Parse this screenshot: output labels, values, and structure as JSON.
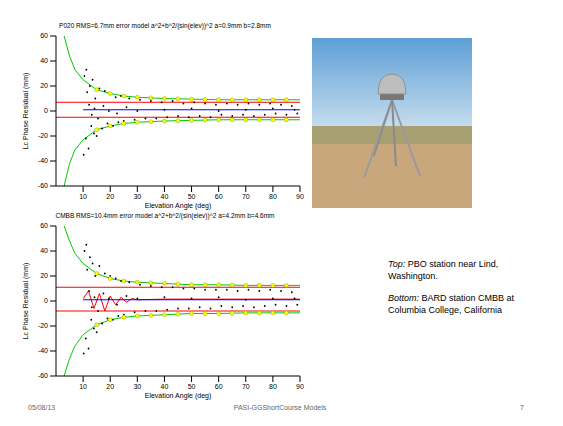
{
  "chart_data": [
    {
      "type": "scatter",
      "title": "P020 RMS=6.7mm error model a^2+b^2/(sin(elev))^2 a=0.9mm b=2.8mm",
      "x_label": "Elevation Angle (deg)",
      "y_label": "Lc Phase Residual (mm)",
      "xlim": [
        0,
        90
      ],
      "xticks": [
        10,
        20,
        30,
        40,
        50,
        60,
        70,
        80,
        90
      ],
      "ylim": [
        -60,
        60
      ],
      "yticks": [
        -60,
        -40,
        -20,
        0,
        20,
        40,
        60
      ],
      "grid": false,
      "series": [
        {
          "type": "scatter",
          "marker": "dot",
          "color": "#000000",
          "x": [
            10.5,
            11,
            11.5,
            12,
            12.5,
            13,
            13.5,
            14,
            14.5,
            15,
            16,
            17,
            18,
            19,
            20,
            21,
            22,
            23,
            24,
            25,
            27,
            29,
            31,
            33,
            35,
            37,
            39,
            41,
            43,
            45,
            47,
            49,
            51,
            53,
            55,
            57,
            59,
            61,
            63,
            65,
            67,
            69,
            71,
            73,
            75,
            77,
            79,
            81,
            83,
            85,
            87,
            89,
            10.2,
            11.2,
            12.2,
            13.2,
            14.2,
            15.5,
            17.5,
            19.5,
            22.5,
            26,
            30,
            40,
            50,
            60,
            70,
            80,
            88
          ],
          "values": [
            28,
            -22,
            15,
            -30,
            20,
            -12,
            25,
            -18,
            10,
            -20,
            18,
            -14,
            16,
            -10,
            14,
            -12,
            11,
            -9,
            12,
            -8,
            10,
            -7,
            9,
            -6,
            8,
            -6,
            7,
            -5,
            8,
            -4,
            6,
            -5,
            7,
            -4,
            6,
            -5,
            5,
            -3,
            6,
            -4,
            5,
            -3,
            6,
            -4,
            5,
            -3,
            6,
            -2,
            5,
            -3,
            4,
            -2,
            -35,
            33,
            5,
            -3,
            2,
            -6,
            4,
            0,
            -2,
            3,
            0,
            1,
            2,
            0,
            1,
            2,
            1
          ]
        },
        {
          "type": "line",
          "line_style": "solid",
          "color": "#00cc00",
          "x": [
            3,
            5,
            7,
            10,
            15,
            20,
            25,
            30,
            40,
            50,
            60,
            70,
            80,
            90
          ],
          "values": [
            60,
            44,
            33,
            25,
            17,
            14,
            12,
            11,
            10,
            9.5,
            9,
            9,
            9,
            9
          ]
        },
        {
          "type": "line",
          "line_style": "solid",
          "color": "#00cc00",
          "x": [
            3,
            5,
            7,
            10,
            15,
            20,
            25,
            30,
            40,
            50,
            60,
            70,
            80,
            90
          ],
          "values": [
            -60,
            -42,
            -31,
            -23,
            -15,
            -12,
            -10,
            -9,
            -8,
            -7.5,
            -7,
            -7,
            -7,
            -7
          ]
        },
        {
          "type": "line",
          "line_style": "solid",
          "color": "#ff0000",
          "x": [
            0,
            90
          ],
          "values": [
            7,
            7
          ]
        },
        {
          "type": "line",
          "line_style": "solid",
          "color": "#ff0000",
          "x": [
            0,
            90
          ],
          "values": [
            -5,
            -5
          ]
        },
        {
          "type": "line",
          "line_style": "solid",
          "color": "#0000ff",
          "x": [
            10,
            90
          ],
          "values": [
            1,
            1
          ]
        },
        {
          "type": "scatter",
          "marker": "circle",
          "color": "#ffff00",
          "x": [
            15,
            20,
            25,
            30,
            35,
            40,
            45,
            50,
            55,
            60,
            65,
            70,
            75,
            80,
            85
          ],
          "values": [
            17,
            14,
            12,
            11,
            10.5,
            10,
            9.8,
            9.5,
            9.2,
            9,
            9,
            9,
            9,
            9,
            9
          ]
        },
        {
          "type": "scatter",
          "marker": "circle",
          "color": "#ffff00",
          "x": [
            15,
            20,
            25,
            30,
            35,
            40,
            45,
            50,
            55,
            60,
            65,
            70,
            75,
            80,
            85
          ],
          "values": [
            -15,
            -12,
            -10,
            -9,
            -8.5,
            -8,
            -7.8,
            -7.5,
            -7.2,
            -7,
            -7,
            -7,
            -7,
            -7,
            -7
          ]
        }
      ]
    },
    {
      "type": "scatter",
      "title": "CMBB RMS=10.4mm error model a^2+b^2/(sin(elev))^2 a=4.2mm b=4.6mm",
      "x_label": "Elevation Angle (deg)",
      "y_label": "Lc Phase Residual (mm)",
      "xlim": [
        0,
        90
      ],
      "xticks": [
        10,
        20,
        30,
        40,
        50,
        60,
        70,
        80,
        90
      ],
      "ylim": [
        -60,
        60
      ],
      "yticks": [
        -60,
        -40,
        -20,
        0,
        20,
        40,
        60
      ],
      "grid": false,
      "series": [
        {
          "type": "scatter",
          "marker": "dot",
          "color": "#000000",
          "x": [
            10.5,
            11,
            11.5,
            12,
            12.5,
            13,
            13.5,
            14,
            14.5,
            15,
            16,
            17,
            18,
            19,
            20,
            21,
            22,
            23,
            24,
            25,
            27,
            29,
            31,
            33,
            35,
            37,
            39,
            41,
            43,
            45,
            47,
            49,
            51,
            53,
            55,
            57,
            59,
            61,
            63,
            65,
            67,
            69,
            71,
            73,
            75,
            77,
            79,
            81,
            83,
            85,
            87,
            89,
            10.2,
            11.2,
            12.2,
            13.2,
            14.2,
            15.5,
            17.5,
            19.5,
            22.5,
            26,
            30,
            40,
            50,
            60,
            70,
            80,
            88
          ],
          "values": [
            40,
            -30,
            25,
            -38,
            35,
            -15,
            30,
            -22,
            20,
            -25,
            28,
            -18,
            22,
            -14,
            20,
            -15,
            18,
            -12,
            16,
            -11,
            15,
            -9,
            13,
            -8,
            12,
            -8,
            11,
            -7,
            11,
            -6,
            10,
            -6,
            10,
            -5,
            9,
            -6,
            9,
            -4,
            9,
            -5,
            8,
            -4,
            9,
            -5,
            8,
            -4,
            9,
            -3,
            8,
            -4,
            7,
            -3,
            -42,
            45,
            8,
            -5,
            3,
            -8,
            6,
            2,
            -3,
            4,
            2,
            3,
            2,
            3,
            1,
            2,
            2
          ]
        },
        {
          "type": "line",
          "line_style": "solid",
          "color": "#00cc00",
          "x": [
            3,
            5,
            7,
            10,
            15,
            20,
            25,
            30,
            40,
            50,
            60,
            70,
            80,
            90
          ],
          "values": [
            60,
            48,
            38,
            30,
            22,
            18,
            16,
            15,
            14,
            13,
            13,
            12.5,
            12.5,
            12.5
          ]
        },
        {
          "type": "line",
          "line_style": "solid",
          "color": "#00cc00",
          "x": [
            3,
            5,
            7,
            10,
            15,
            20,
            25,
            30,
            40,
            50,
            60,
            70,
            80,
            90
          ],
          "values": [
            -60,
            -46,
            -36,
            -27,
            -19,
            -15,
            -13,
            -12,
            -11,
            -10,
            -10,
            -9.5,
            -9.5,
            -9.5
          ]
        },
        {
          "type": "line",
          "line_style": "solid",
          "color": "#ff0000",
          "x": [
            0,
            90
          ],
          "values": [
            11,
            11
          ]
        },
        {
          "type": "line",
          "line_style": "solid",
          "color": "#ff0000",
          "x": [
            0,
            90
          ],
          "values": [
            -8,
            -8
          ]
        },
        {
          "type": "line",
          "line_style": "solid",
          "color": "#ff0000",
          "x": [
            10,
            12,
            14,
            16,
            18,
            20,
            22,
            24,
            26,
            28,
            30,
            40,
            50,
            60,
            70,
            80,
            90
          ],
          "values": [
            2,
            8,
            -6,
            6,
            -8,
            4,
            -3,
            3,
            -1,
            2,
            1,
            1.5,
            1.5,
            1.5,
            1.5,
            1.5,
            1.5
          ]
        },
        {
          "type": "line",
          "line_style": "solid",
          "color": "#0000ff",
          "x": [
            10,
            90
          ],
          "values": [
            1,
            1
          ]
        },
        {
          "type": "scatter",
          "marker": "circle",
          "color": "#ffff00",
          "x": [
            15,
            20,
            25,
            30,
            35,
            40,
            45,
            50,
            55,
            60,
            65,
            70,
            75,
            80,
            85
          ],
          "values": [
            22,
            18,
            16,
            15,
            14.5,
            14,
            13.5,
            13,
            13,
            13,
            12.8,
            12.5,
            12.5,
            12.5,
            12.5
          ]
        },
        {
          "type": "scatter",
          "marker": "circle",
          "color": "#ffff00",
          "x": [
            15,
            20,
            25,
            30,
            35,
            40,
            45,
            50,
            55,
            60,
            65,
            70,
            75,
            80,
            85
          ],
          "values": [
            -19,
            -15,
            -13,
            -12,
            -11.5,
            -11,
            -10.5,
            -10,
            -10,
            -10,
            -9.8,
            -9.5,
            -9.5,
            -9.5,
            -9.5
          ]
        }
      ]
    }
  ],
  "captions": [
    {
      "lead": "Top:",
      "text": "PBO station near Lind, Washington."
    },
    {
      "lead": "Bottom:",
      "text": "BARD station CMBB at Columbia College, California"
    }
  ],
  "footer": {
    "date": "05/08/13",
    "title": "PASI-GGShortCourse Models",
    "page": "7"
  }
}
